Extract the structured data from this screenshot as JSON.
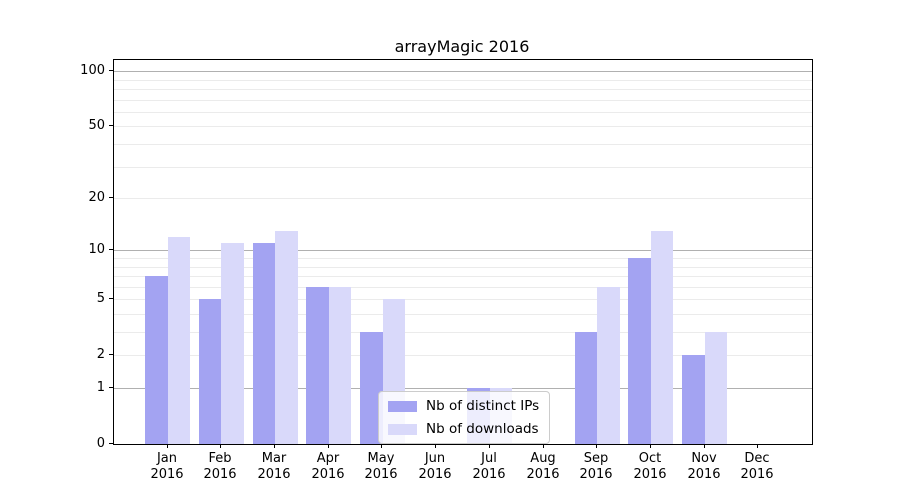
{
  "title": "arrayMagic 2016",
  "chart_data": {
    "type": "bar",
    "title": "arrayMagic 2016",
    "categories": [
      "Jan",
      "Feb",
      "Mar",
      "Apr",
      "May",
      "Jun",
      "Jul",
      "Aug",
      "Sep",
      "Oct",
      "Nov",
      "Dec"
    ],
    "x_year_label": "2016",
    "series": [
      {
        "name": "Nb of distinct IPs",
        "color": "#a3a3f2",
        "values": [
          7,
          5,
          11,
          6,
          3,
          0,
          1,
          0,
          3,
          9,
          2,
          0
        ]
      },
      {
        "name": "Nb of downloads",
        "color": "#d9d9fa",
        "values": [
          12,
          11,
          13,
          6,
          5,
          0,
          1,
          0,
          6,
          13,
          3,
          0
        ]
      }
    ],
    "yscale": "log1p",
    "ylim": [
      0,
      115
    ],
    "y_ticks": [
      0,
      1,
      2,
      5,
      10,
      20,
      50,
      100
    ],
    "y_major_gridlines": [
      1,
      10,
      100
    ],
    "y_minor_gridlines": [
      2,
      3,
      4,
      5,
      6,
      7,
      8,
      9,
      20,
      30,
      40,
      50,
      60,
      70,
      80,
      90
    ],
    "grid": "on",
    "legend_position": "lower center"
  },
  "colors": {
    "major_grid": "#b0b0b0",
    "minor_grid": "#ebebeb",
    "spine": "#000000",
    "background": "#ffffff"
  }
}
